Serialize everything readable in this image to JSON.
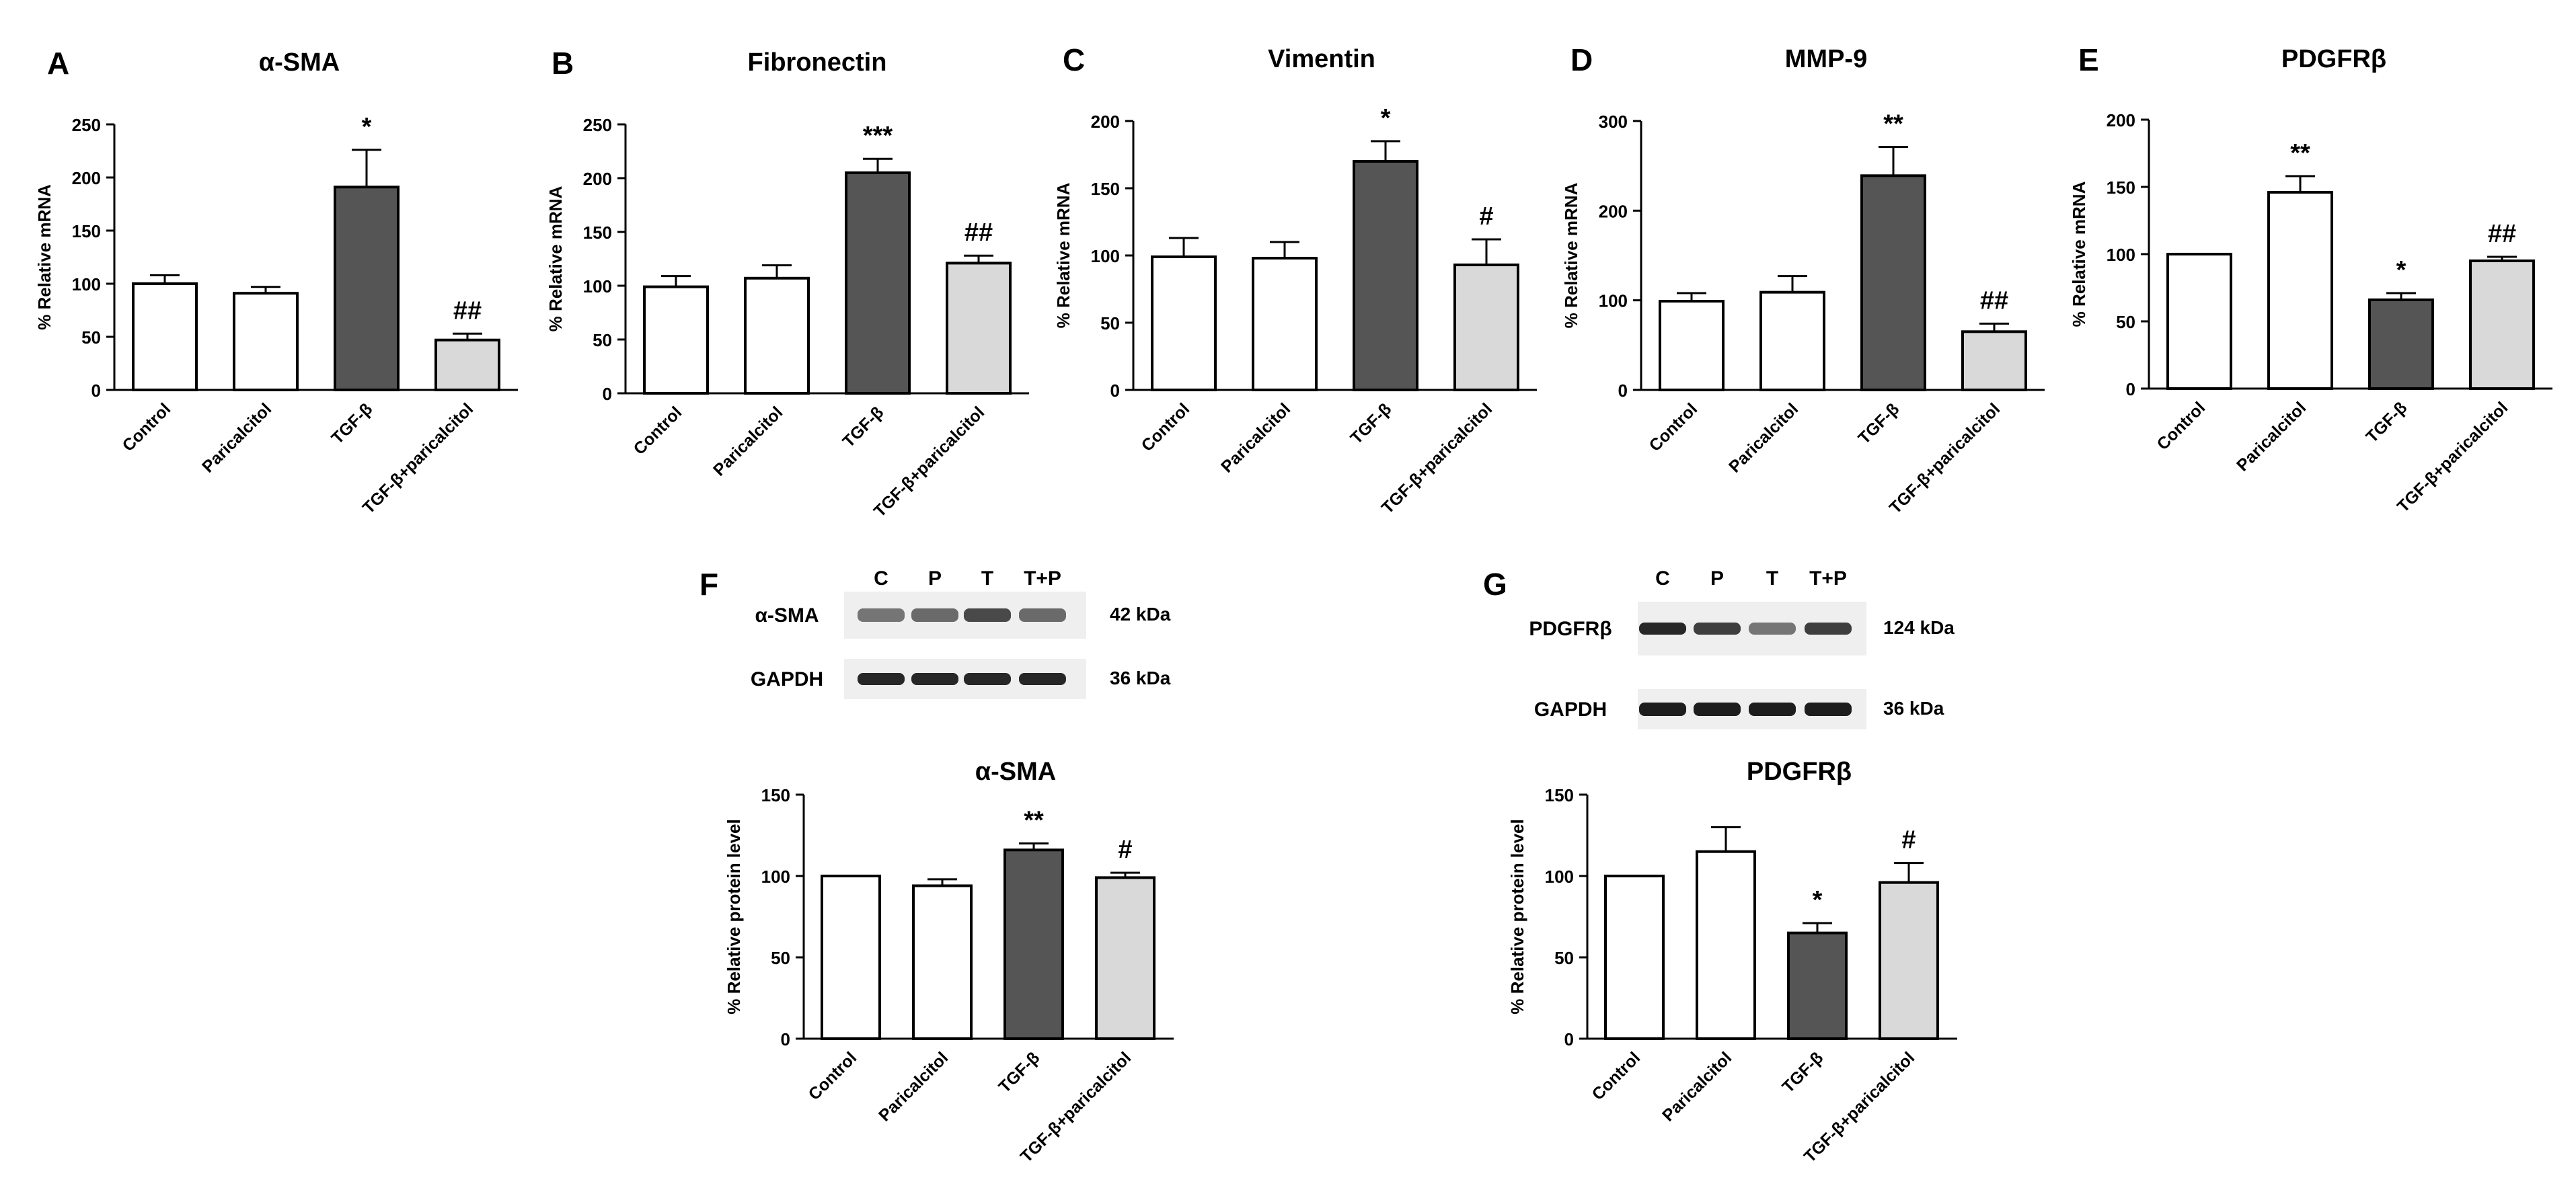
{
  "colors": {
    "control": "#ffffff",
    "paricalcitol": "#ffffff",
    "tgf": "#555555",
    "combo": "#d9d9d9",
    "stroke": "#000000"
  },
  "chart_data": [
    {
      "panel": "A",
      "type": "bar",
      "title": "α-SMA",
      "ylabel": "% Relative mRNA",
      "categories": [
        "Control",
        "Paricalcitol",
        "TGF-β",
        "TGF-β+paricalcitol"
      ],
      "values": [
        100,
        91,
        191,
        47
      ],
      "errors": [
        8,
        6,
        35,
        6
      ],
      "annotations": [
        "",
        "",
        "*",
        "##"
      ],
      "ylim": [
        0,
        250
      ],
      "yticks": [
        "0",
        "50",
        "100",
        "150",
        "200",
        "250"
      ]
    },
    {
      "panel": "B",
      "type": "bar",
      "title": "Fibronectin",
      "ylabel": "% Relative mRNA",
      "categories": [
        "Control",
        "Paricalcitol",
        "TGF-β",
        "TGF-β+paricalcitol"
      ],
      "values": [
        99,
        107,
        205,
        121
      ],
      "errors": [
        10,
        12,
        13,
        7
      ],
      "annotations": [
        "",
        "",
        "***",
        "##"
      ],
      "ylim": [
        0,
        250
      ],
      "yticks": [
        "0",
        "50",
        "100",
        "150",
        "200",
        "250"
      ]
    },
    {
      "panel": "C",
      "type": "bar",
      "title": "Vimentin",
      "ylabel": "% Relative mRNA",
      "categories": [
        "Control",
        "Paricalcitol",
        "TGF-β",
        "TGF-β+paricalcitol"
      ],
      "values": [
        99,
        98,
        170,
        93
      ],
      "errors": [
        14,
        12,
        15,
        19
      ],
      "annotations": [
        "",
        "",
        "*",
        "#"
      ],
      "ylim": [
        0,
        200
      ],
      "yticks": [
        "0",
        "50",
        "100",
        "150",
        "200"
      ]
    },
    {
      "panel": "D",
      "type": "bar",
      "title": "MMP-9",
      "ylabel": "% Relative mRNA",
      "categories": [
        "Control",
        "Paricalcitol",
        "TGF-β",
        "TGF-β+paricalcitol"
      ],
      "values": [
        99,
        109,
        239,
        65
      ],
      "errors": [
        9,
        18,
        32,
        9
      ],
      "annotations": [
        "",
        "",
        "**",
        "##"
      ],
      "ylim": [
        0,
        300
      ],
      "yticks": [
        "0",
        "100",
        "200",
        "300"
      ]
    },
    {
      "panel": "E",
      "type": "bar",
      "title": "PDGFRβ",
      "ylabel": "% Relative mRNA",
      "categories": [
        "Control",
        "Paricalcitol",
        "TGF-β",
        "TGF-β+paricalcitol"
      ],
      "values": [
        100,
        146,
        66,
        95
      ],
      "errors": [
        0,
        12,
        5,
        3
      ],
      "annotations": [
        "",
        "**",
        "*",
        "##"
      ],
      "ylim": [
        0,
        200
      ],
      "yticks": [
        "0",
        "50",
        "100",
        "150",
        "200"
      ]
    },
    {
      "panel": "F",
      "type": "bar",
      "title": "α-SMA",
      "ylabel": "% Relative protein level",
      "categories": [
        "Control",
        "Paricalcitol",
        "TGF-β",
        "TGF-β+paricalcitol"
      ],
      "values": [
        100,
        94,
        116,
        99
      ],
      "errors": [
        0,
        4,
        4,
        3
      ],
      "annotations": [
        "",
        "",
        "**",
        "#"
      ],
      "ylim": [
        0,
        150
      ],
      "yticks": [
        "0",
        "50",
        "100",
        "150"
      ]
    },
    {
      "panel": "G",
      "type": "bar",
      "title": "PDGFRβ",
      "ylabel": "% Relative protein level",
      "categories": [
        "Control",
        "Paricalcitol",
        "TGF-β",
        "TGF-β+paricalcitol"
      ],
      "values": [
        100,
        115,
        65,
        96
      ],
      "errors": [
        0,
        15,
        6,
        12
      ],
      "annotations": [
        "",
        "",
        "*",
        "#"
      ],
      "ylim": [
        0,
        150
      ],
      "yticks": [
        "0",
        "50",
        "100",
        "150"
      ]
    }
  ],
  "blots": [
    {
      "panel": "F",
      "lanes": [
        "C",
        "P",
        "T",
        "T+P"
      ],
      "rows": [
        {
          "label": "α-SMA",
          "kda": "42 kDa"
        },
        {
          "label": "GAPDH",
          "kda": "36 kDa"
        }
      ]
    },
    {
      "panel": "G",
      "lanes": [
        "C",
        "P",
        "T",
        "T+P"
      ],
      "rows": [
        {
          "label": "PDGFRβ",
          "kda": "124 kDa"
        },
        {
          "label": "GAPDH",
          "kda": "36 kDa"
        }
      ]
    }
  ]
}
